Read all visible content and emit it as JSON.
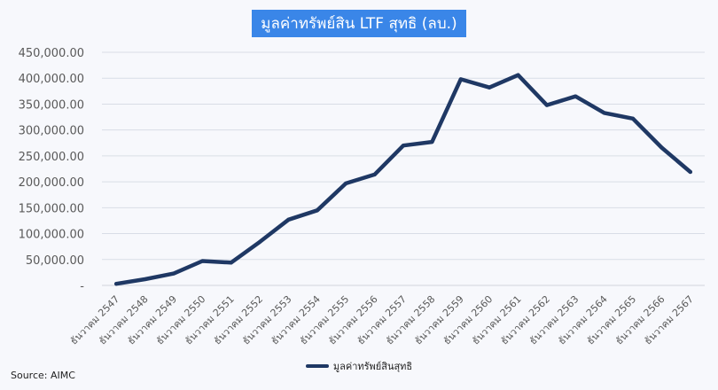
{
  "chart_data": {
    "type": "line",
    "title": "มูลค่าทรัพย์สิน LTF สุทธิ (ลบ.)",
    "source": "Source: AIMC",
    "categories": [
      "ธันวาคม 2547",
      "ธันวาคม 2548",
      "ธันวาคม 2549",
      "ธันวาคม 2550",
      "ธันวาคม 2551",
      "ธันวาคม 2552",
      "ธันวาคม 2553",
      "ธันวาคม 2554",
      "ธันวาคม 2555",
      "ธันวาคม 2556",
      "ธันวาคม 2557",
      "ธันวาคม 2558",
      "ธันวาคม 2559",
      "ธันวาคม 2560",
      "ธันวาคม 2561",
      "ธันวาคม 2562",
      "ธันวาคม 2563",
      "ธันวาคม 2564",
      "ธันวาคม 2565",
      "ธันวาคม 2566",
      "ธันวาคม 2567"
    ],
    "series": [
      {
        "name": "มูลค่าทรัพย์สินสุทธิ",
        "color": "#1f3864",
        "values": [
          3000,
          12000,
          23000,
          47000,
          44000,
          84000,
          127000,
          145000,
          197000,
          214000,
          270000,
          277000,
          398000,
          382000,
          406000,
          348000,
          365000,
          333000,
          322000,
          266000,
          219000
        ]
      }
    ],
    "y_ticks": [
      "-",
      "50,000.00",
      "100,000.00",
      "150,000.00",
      "200,000.00",
      "250,000.00",
      "300,000.00",
      "350,000.00",
      "400,000.00",
      "450,000.00"
    ],
    "ylim": [
      0,
      450000
    ],
    "grid": true,
    "legend": "bottom"
  }
}
